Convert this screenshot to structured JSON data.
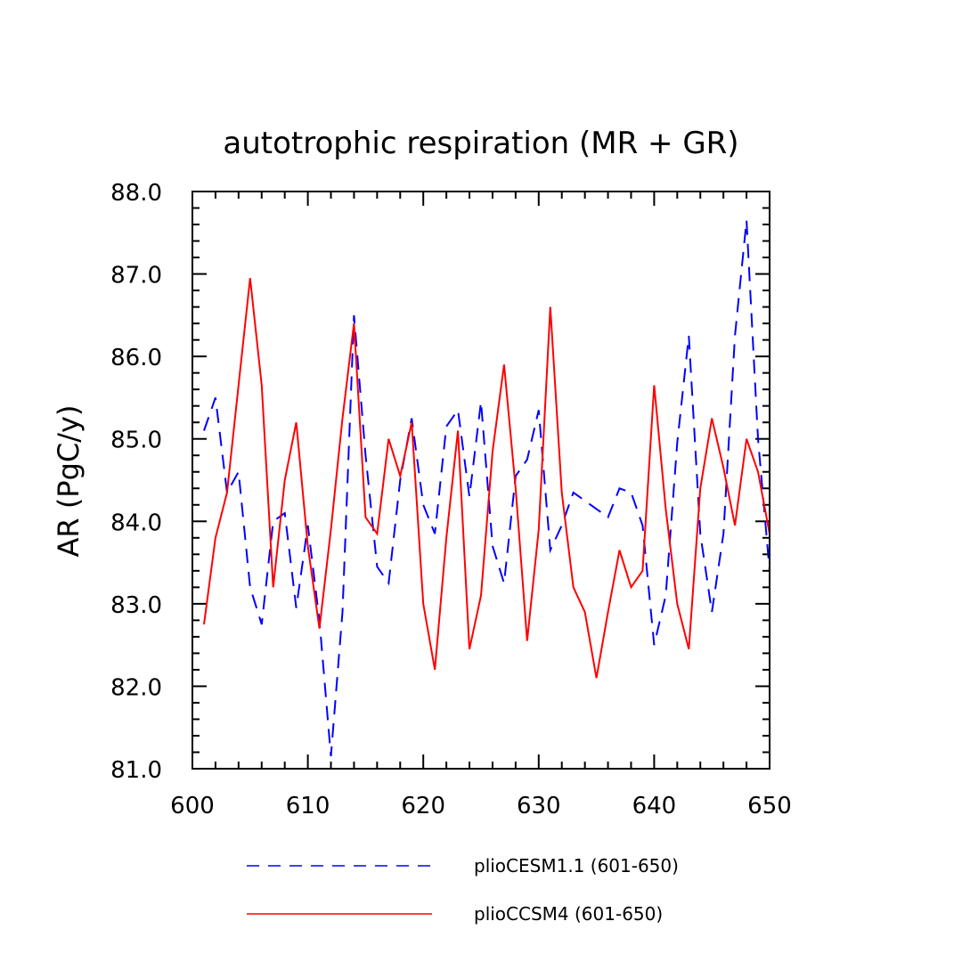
{
  "chart_data": {
    "type": "line",
    "title": "autotrophic respiration (MR + GR)",
    "xlabel": "",
    "ylabel": "AR (PgC/y)",
    "xlim": [
      600,
      650
    ],
    "ylim": [
      81.0,
      88.0
    ],
    "x_ticks": [
      600,
      610,
      620,
      630,
      640,
      650
    ],
    "y_ticks": [
      "81.0",
      "82.0",
      "83.0",
      "84.0",
      "85.0",
      "86.0",
      "87.0",
      "88.0"
    ],
    "legend_position": "bottom",
    "x": [
      601,
      602,
      603,
      604,
      605,
      606,
      607,
      608,
      609,
      610,
      611,
      612,
      613,
      614,
      615,
      616,
      617,
      618,
      619,
      620,
      621,
      622,
      623,
      624,
      625,
      626,
      627,
      628,
      629,
      630,
      631,
      632,
      633,
      634,
      635,
      636,
      637,
      638,
      639,
      640,
      641,
      642,
      643,
      644,
      645,
      646,
      647,
      648,
      649,
      650
    ],
    "series": [
      {
        "name": "plioCESM1.1 (601-650)",
        "color": "#0000ff",
        "dash": "dashed",
        "values": [
          85.1,
          85.5,
          84.35,
          84.6,
          83.2,
          82.75,
          84.0,
          84.1,
          82.95,
          83.95,
          82.8,
          81.15,
          82.9,
          86.5,
          84.8,
          83.45,
          83.25,
          84.5,
          85.25,
          84.2,
          83.85,
          85.15,
          85.35,
          84.3,
          85.45,
          83.7,
          83.25,
          84.55,
          84.75,
          85.35,
          83.65,
          83.95,
          84.35,
          84.25,
          84.15,
          84.05,
          84.4,
          84.35,
          83.95,
          82.5,
          83.1,
          84.95,
          86.25,
          83.85,
          82.9,
          83.85,
          86.25,
          87.65,
          85.0,
          83.4
        ]
      },
      {
        "name": "plioCCSM4 (601-650)",
        "color": "#ff0000",
        "dash": "solid",
        "values": [
          82.75,
          83.8,
          84.35,
          85.65,
          86.95,
          85.65,
          83.2,
          84.5,
          85.2,
          83.7,
          82.7,
          83.9,
          85.25,
          86.4,
          84.05,
          83.85,
          85.0,
          84.55,
          85.2,
          83.0,
          82.2,
          83.8,
          85.1,
          82.45,
          83.1,
          84.85,
          85.9,
          84.4,
          82.55,
          83.9,
          86.6,
          84.35,
          83.2,
          82.9,
          82.1,
          82.9,
          83.65,
          83.2,
          83.4,
          85.65,
          84.15,
          83.0,
          82.45,
          84.4,
          85.25,
          84.65,
          83.95,
          85.0,
          84.6,
          83.85
        ]
      }
    ]
  }
}
